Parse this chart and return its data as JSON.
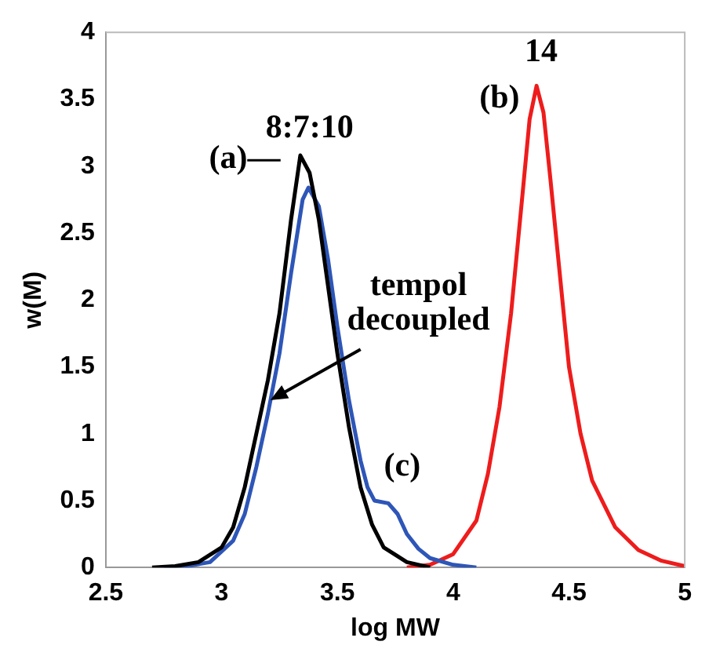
{
  "chart_data": {
    "type": "line",
    "xlabel": "log MW",
    "ylabel": "w(M)",
    "xlim": [
      2.5,
      5
    ],
    "xticks": [
      2.5,
      3,
      3.5,
      4,
      4.5,
      5
    ],
    "ylim": [
      0,
      4
    ],
    "yticks": [
      0,
      0.5,
      1,
      1.5,
      2,
      2.5,
      3,
      3.5,
      4
    ],
    "grid": false,
    "legend": false,
    "marker": "none",
    "line_style": "solid",
    "series": [
      {
        "color": "#000000",
        "x": [
          2.7,
          2.8,
          2.9,
          3.0,
          3.05,
          3.1,
          3.15,
          3.2,
          3.25,
          3.3,
          3.34,
          3.38,
          3.42,
          3.46,
          3.5,
          3.55,
          3.6,
          3.65,
          3.7,
          3.8,
          3.9
        ],
        "values": [
          0,
          0.01,
          0.04,
          0.15,
          0.3,
          0.6,
          1.0,
          1.4,
          1.9,
          2.6,
          3.08,
          2.95,
          2.6,
          2.1,
          1.6,
          1.05,
          0.6,
          0.32,
          0.15,
          0.04,
          0
        ]
      },
      {
        "color": "#2e56b8",
        "x": [
          2.75,
          2.85,
          2.95,
          3.05,
          3.1,
          3.15,
          3.2,
          3.25,
          3.3,
          3.35,
          3.375,
          3.42,
          3.46,
          3.5,
          3.55,
          3.6,
          3.63,
          3.66,
          3.72,
          3.76,
          3.8,
          3.85,
          3.9,
          4.0,
          4.1
        ],
        "values": [
          0,
          0.01,
          0.04,
          0.2,
          0.4,
          0.75,
          1.15,
          1.6,
          2.2,
          2.75,
          2.84,
          2.7,
          2.3,
          1.8,
          1.25,
          0.8,
          0.6,
          0.5,
          0.48,
          0.4,
          0.25,
          0.14,
          0.07,
          0.02,
          0
        ]
      },
      {
        "color": "#ee1c1c",
        "x": [
          3.8,
          3.9,
          4.0,
          4.1,
          4.15,
          4.2,
          4.25,
          4.3,
          4.33,
          4.36,
          4.39,
          4.42,
          4.46,
          4.5,
          4.55,
          4.6,
          4.7,
          4.8,
          4.9,
          5.0
        ],
        "values": [
          0,
          0.02,
          0.1,
          0.35,
          0.7,
          1.2,
          1.9,
          2.8,
          3.35,
          3.6,
          3.4,
          2.9,
          2.2,
          1.5,
          1.0,
          0.65,
          0.3,
          0.13,
          0.05,
          0.01
        ]
      }
    ],
    "annotations": [
      "8:7:10",
      "(a)—",
      "14",
      "(b)",
      "(c)",
      {
        "text": "tempol decoupled",
        "x": 3.21,
        "y": 1.25
      }
    ]
  }
}
